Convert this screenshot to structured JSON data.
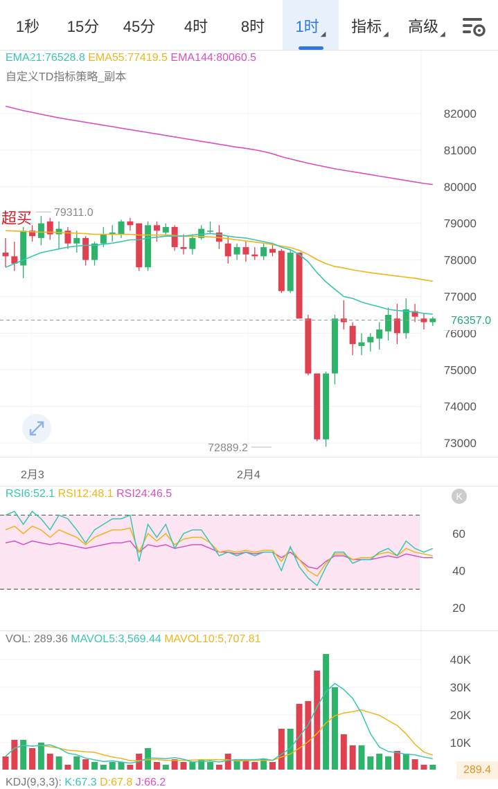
{
  "tabs": [
    {
      "label": "1秒",
      "active": false,
      "has_menu": false
    },
    {
      "label": "15分",
      "active": false,
      "has_menu": false
    },
    {
      "label": "45分",
      "active": false,
      "has_menu": false
    },
    {
      "label": "4时",
      "active": false,
      "has_menu": false
    },
    {
      "label": "8时",
      "active": false,
      "has_menu": false
    },
    {
      "label": "1时",
      "active": true,
      "has_menu": true
    },
    {
      "label": "指标",
      "active": false,
      "has_menu": true
    },
    {
      "label": "高级",
      "active": false,
      "has_menu": true
    }
  ],
  "settings_icon": "chart-settings-icon",
  "main": {
    "ema21": "EMA21:76528.8",
    "ema55": "EMA55:77419.5",
    "ema144": "EMA144:80060.5",
    "strategy": "自定义TD指标策略_副本",
    "overbought": "超买",
    "high_label": "79311.0",
    "low_label": "72889.2",
    "current_price": "76357.0",
    "y_ticks": [
      "82000",
      "81000",
      "80000",
      "79000",
      "78000",
      "77000",
      "76000",
      "75000",
      "74000",
      "73000"
    ],
    "x_ticks": [
      "2月3",
      "2月4"
    ],
    "expand_icon": "expand-icon",
    "colors": {
      "up": "#2db36a",
      "down": "#e04050",
      "ema21": "#35c6b1",
      "ema55": "#f0b419",
      "ema144": "#d84fc0"
    }
  },
  "rsi": {
    "rsi6": "RSI6:52.1",
    "rsi12": "RSI12:48.1",
    "rsi24": "RSI24:46.5",
    "y_ticks": [
      "60",
      "40",
      "20"
    ],
    "close_icon": "close-icon"
  },
  "vol": {
    "vol": "VOL: 289.36",
    "mavol5": "MAVOL5:3,569.44",
    "mavol10": "MAVOL10:5,707.81",
    "y_ticks": [
      "40K",
      "30K",
      "20K",
      "10K"
    ],
    "current": "289.4"
  },
  "kdj": {
    "label": "KDJ(9,3,3):",
    "k": "K:67.3",
    "d": "D:67.8",
    "j": "J:66.2"
  },
  "chart_data": {
    "type": "candlestick",
    "x_labels": [
      "2月3",
      "2月4"
    ],
    "ylim": [
      72600,
      83000
    ],
    "candles": [
      [
        78200,
        78100,
        78600,
        77800
      ],
      [
        78100,
        77900,
        78500,
        77700
      ],
      [
        77850,
        78800,
        78900,
        77500
      ],
      [
        78800,
        78650,
        78950,
        78500
      ],
      [
        78600,
        79000,
        79200,
        78400
      ],
      [
        79050,
        78700,
        79150,
        78550
      ],
      [
        78700,
        78850,
        79050,
        78300
      ],
      [
        78800,
        78450,
        78900,
        78300
      ],
      [
        78450,
        78600,
        78800,
        78200
      ],
      [
        78600,
        78000,
        78650,
        77850
      ],
      [
        78000,
        78450,
        78500,
        77850
      ],
      [
        78450,
        78700,
        78900,
        78350
      ],
      [
        78700,
        78750,
        78950,
        78500
      ],
      [
        78700,
        79050,
        79100,
        78600
      ],
      [
        79050,
        78950,
        79150,
        78800
      ],
      [
        79000,
        77800,
        79000,
        77700
      ],
      [
        77800,
        78950,
        79050,
        77700
      ],
      [
        78950,
        78800,
        79050,
        78500
      ],
      [
        78750,
        78900,
        79000,
        78700
      ],
      [
        78900,
        78350,
        78950,
        78250
      ],
      [
        78350,
        78300,
        78700,
        78150
      ],
      [
        78300,
        78600,
        78700,
        78150
      ],
      [
        78600,
        78850,
        78950,
        78550
      ],
      [
        78800,
        78800,
        79050,
        78700
      ],
      [
        78750,
        78500,
        78950,
        78300
      ],
      [
        78450,
        78100,
        78650,
        77900
      ],
      [
        78150,
        78350,
        78450,
        78000
      ],
      [
        78350,
        78150,
        78500,
        77950
      ],
      [
        78150,
        78100,
        78350,
        78000
      ],
      [
        78100,
        78350,
        78450,
        78000
      ],
      [
        78300,
        78200,
        78450,
        78100
      ],
      [
        78250,
        77150,
        78300,
        77100
      ],
      [
        77150,
        78200,
        78300,
        77100
      ],
      [
        78200,
        76400,
        78200,
        76400
      ],
      [
        76400,
        74900,
        76500,
        74850
      ],
      [
        74900,
        73100,
        74900,
        73050
      ],
      [
        73100,
        74900,
        74950,
        72900
      ],
      [
        74900,
        76400,
        76500,
        74600
      ],
      [
        76400,
        76300,
        76900,
        76100
      ],
      [
        76200,
        75700,
        76300,
        75400
      ],
      [
        75650,
        75750,
        76000,
        75400
      ],
      [
        75750,
        75900,
        76000,
        75500
      ],
      [
        75850,
        76100,
        76300,
        75550
      ],
      [
        76050,
        76500,
        76700,
        75800
      ],
      [
        76400,
        76000,
        76800,
        75700
      ],
      [
        76000,
        76650,
        76950,
        75850
      ],
      [
        76600,
        76450,
        76800,
        76300
      ],
      [
        76400,
        76300,
        76550,
        76100
      ],
      [
        76300,
        76400,
        76450,
        76200
      ]
    ],
    "ema21": [
      77800,
      77900,
      78000,
      78100,
      78200,
      78250,
      78300,
      78350,
      78380,
      78400,
      78400,
      78430,
      78460,
      78500,
      78550,
      78550,
      78600,
      78620,
      78650,
      78650,
      78650,
      78680,
      78700,
      78720,
      78700,
      78650,
      78620,
      78600,
      78550,
      78500,
      78450,
      78350,
      78280,
      78150,
      77950,
      77650,
      77400,
      77200,
      77000,
      76950,
      76850,
      76780,
      76720,
      76650,
      76620,
      76600,
      76580,
      76540,
      76520
    ],
    "ema55": [
      78800,
      78790,
      78780,
      78770,
      78760,
      78760,
      78750,
      78740,
      78730,
      78720,
      78700,
      78700,
      78700,
      78700,
      78700,
      78680,
      78680,
      78680,
      78680,
      78670,
      78650,
      78640,
      78640,
      78630,
      78610,
      78580,
      78550,
      78520,
      78490,
      78460,
      78420,
      78380,
      78340,
      78260,
      78150,
      78010,
      77900,
      77820,
      77780,
      77730,
      77690,
      77650,
      77620,
      77590,
      77560,
      77530,
      77500,
      77460,
      77420
    ],
    "ema144": [
      82200,
      82140,
      82080,
      82030,
      81980,
      81930,
      81880,
      81840,
      81800,
      81760,
      81720,
      81680,
      81640,
      81600,
      81560,
      81520,
      81480,
      81440,
      81400,
      81360,
      81320,
      81280,
      81240,
      81200,
      81160,
      81120,
      81080,
      81050,
      81010,
      80960,
      80900,
      80820,
      80760,
      80700,
      80640,
      80590,
      80540,
      80490,
      80450,
      80410,
      80370,
      80330,
      80290,
      80250,
      80210,
      80170,
      80130,
      80090,
      80060
    ],
    "rsi6": [
      70,
      72,
      65,
      72,
      68,
      62,
      70,
      68,
      62,
      55,
      62,
      65,
      68,
      68,
      70,
      45,
      65,
      58,
      65,
      52,
      60,
      62,
      62,
      55,
      48,
      50,
      48,
      50,
      48,
      50,
      50,
      40,
      53,
      42,
      36,
      32,
      42,
      50,
      50,
      44,
      46,
      46,
      50,
      52,
      48,
      56,
      52,
      50,
      52
    ],
    "rsi12": [
      62,
      64,
      60,
      64,
      62,
      58,
      62,
      60,
      58,
      54,
      58,
      60,
      62,
      62,
      63,
      50,
      60,
      56,
      60,
      54,
      57,
      58,
      58,
      55,
      50,
      51,
      50,
      51,
      50,
      51,
      51,
      45,
      52,
      46,
      40,
      37,
      44,
      49,
      49,
      46,
      47,
      47,
      49,
      50,
      48,
      52,
      50,
      49,
      48
    ],
    "rsi24": [
      55,
      56,
      54,
      56,
      55,
      54,
      55,
      54,
      53,
      52,
      53,
      54,
      55,
      55,
      56,
      50,
      54,
      53,
      54,
      52,
      53,
      54,
      54,
      52,
      50,
      50,
      49,
      50,
      49,
      50,
      50,
      47,
      50,
      46,
      42,
      41,
      45,
      48,
      48,
      46,
      46,
      46,
      47,
      48,
      47,
      49,
      48,
      47,
      47
    ],
    "rsi_range": [
      10,
      75
    ],
    "rsi_band": [
      30,
      70
    ],
    "volume": [
      5,
      11,
      11,
      8,
      10,
      6,
      5,
      2,
      5,
      4,
      3,
      2,
      3,
      3,
      2,
      6,
      8,
      3,
      2,
      4,
      3,
      3,
      4,
      3,
      2,
      6,
      4,
      4,
      3,
      4,
      3,
      15,
      15,
      24,
      25,
      36,
      42,
      30,
      13,
      9,
      9,
      5,
      6,
      5,
      7,
      6,
      4,
      2,
      2
    ],
    "vol_ylim": [
      0,
      45
    ]
  }
}
